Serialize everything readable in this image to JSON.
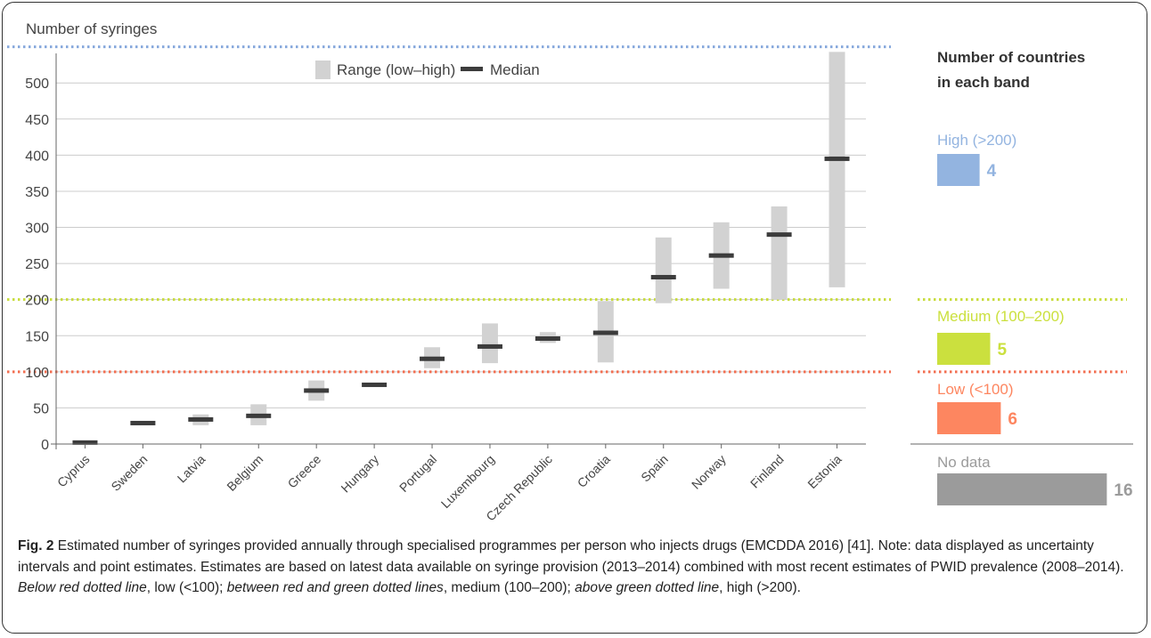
{
  "chart_data": {
    "type": "range",
    "ylabel": "Number of syringes",
    "ylim": [
      0,
      550
    ],
    "yticks": [
      0,
      50,
      100,
      150,
      200,
      250,
      300,
      350,
      400,
      450,
      500
    ],
    "grid": true,
    "legend": {
      "placement": "top-center",
      "range_label": "Range (low–high)",
      "median_label": "Median"
    },
    "categories": [
      "Cyprus",
      "Sweden",
      "Latvia",
      "Belgium",
      "Greece",
      "Hungary",
      "Portugal",
      "Luxembourg",
      "Czech Republic",
      "Croatia",
      "Spain",
      "Norway",
      "Finland",
      "Estonia"
    ],
    "low": [
      1,
      27,
      26,
      26,
      60,
      81,
      105,
      112,
      140,
      113,
      195,
      215,
      200,
      217
    ],
    "high": [
      4,
      31,
      41,
      55,
      88,
      84,
      134,
      167,
      155,
      198,
      286,
      307,
      329,
      543
    ],
    "median": [
      2,
      29,
      34,
      39,
      74,
      82,
      118,
      135,
      146,
      154,
      231,
      261,
      290,
      395
    ],
    "thresholds": [
      {
        "value": 100,
        "color": "#f26e50"
      },
      {
        "value": 200,
        "color": "#c8dc3c"
      },
      {
        "value": 550,
        "color": "#86a8dc"
      }
    ],
    "bands": {
      "title_line1": "Number of countries",
      "title_line2": "in each band",
      "items": [
        {
          "label": "High (>200)",
          "count": 4,
          "color": "#93b4e0"
        },
        {
          "label": "Medium (100–200)",
          "count": 5,
          "color": "#cbe03e"
        },
        {
          "label": "Low (<100)",
          "count": 6,
          "color": "#fd8660"
        },
        {
          "label": "No data",
          "count": 16,
          "color": "#9b9b9b"
        }
      ]
    }
  },
  "caption": {
    "fig_label": "Fig. 2",
    "text1": " Estimated number of syringes provided annually through specialised programmes per person who injects drugs (EMCDDA 2016) [41]. Note: data displayed as uncertainty intervals and point estimates. Estimates are based on latest data available on syringe provision (2013–2014) combined with most recent estimates of PWID prevalence (2008–2014). ",
    "italic1": "Below red dotted line",
    "text2": ", low (<100); ",
    "italic2": "between red and green dotted lines",
    "text3": ", medium (100–200); ",
    "italic3": "above green dotted line",
    "text4": ", high (>200)."
  }
}
